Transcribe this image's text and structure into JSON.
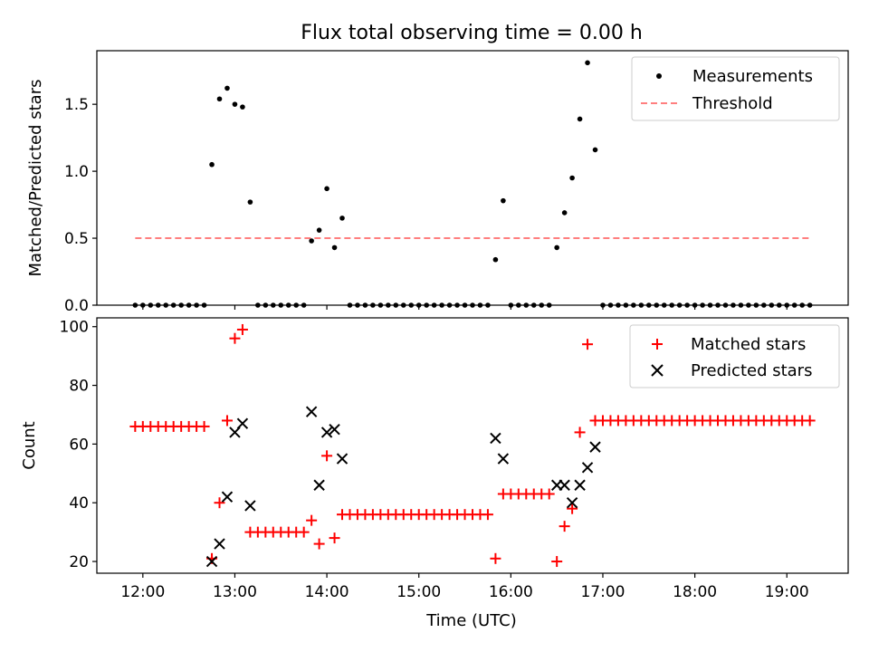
{
  "chart_data": [
    {
      "type": "scatter",
      "title": "Flux total observing time = 0.00 h",
      "ylabel": "Matched/Predicted stars",
      "xlim": [
        "11:30",
        "19:40"
      ],
      "ylim": [
        0,
        1.9
      ],
      "yticks": [
        "0.0",
        "0.5",
        "1.0",
        "1.5"
      ],
      "grid": false,
      "legend": "top-right",
      "series": [
        {
          "name": "Measurements",
          "marker": "dot",
          "color": "#000000",
          "points": [
            [
              "11:55",
              0
            ],
            [
              "12:00",
              0
            ],
            [
              "12:05",
              0
            ],
            [
              "12:10",
              0
            ],
            [
              "12:15",
              0
            ],
            [
              "12:20",
              0
            ],
            [
              "12:25",
              0
            ],
            [
              "12:30",
              0
            ],
            [
              "12:35",
              0
            ],
            [
              "12:40",
              0
            ],
            [
              "12:45",
              1.05
            ],
            [
              "12:50",
              1.54
            ],
            [
              "12:55",
              1.62
            ],
            [
              "13:00",
              1.5
            ],
            [
              "13:05",
              1.48
            ],
            [
              "13:10",
              0.77
            ],
            [
              "13:15",
              0
            ],
            [
              "13:20",
              0
            ],
            [
              "13:25",
              0
            ],
            [
              "13:30",
              0
            ],
            [
              "13:35",
              0
            ],
            [
              "13:40",
              0
            ],
            [
              "13:45",
              0
            ],
            [
              "13:50",
              0.48
            ],
            [
              "13:55",
              0.56
            ],
            [
              "14:00",
              0.87
            ],
            [
              "14:05",
              0.43
            ],
            [
              "14:10",
              0.65
            ],
            [
              "14:15",
              0
            ],
            [
              "14:20",
              0
            ],
            [
              "14:25",
              0
            ],
            [
              "14:30",
              0
            ],
            [
              "14:35",
              0
            ],
            [
              "14:40",
              0
            ],
            [
              "14:45",
              0
            ],
            [
              "14:50",
              0
            ],
            [
              "14:55",
              0
            ],
            [
              "15:00",
              0
            ],
            [
              "15:05",
              0
            ],
            [
              "15:10",
              0
            ],
            [
              "15:15",
              0
            ],
            [
              "15:20",
              0
            ],
            [
              "15:25",
              0
            ],
            [
              "15:30",
              0
            ],
            [
              "15:35",
              0
            ],
            [
              "15:40",
              0
            ],
            [
              "15:45",
              0
            ],
            [
              "15:50",
              0.34
            ],
            [
              "15:55",
              0.78
            ],
            [
              "16:00",
              0
            ],
            [
              "16:05",
              0
            ],
            [
              "16:10",
              0
            ],
            [
              "16:15",
              0
            ],
            [
              "16:20",
              0
            ],
            [
              "16:25",
              0
            ],
            [
              "16:30",
              0.43
            ],
            [
              "16:35",
              0.69
            ],
            [
              "16:40",
              0.95
            ],
            [
              "16:45",
              1.39
            ],
            [
              "16:50",
              1.81
            ],
            [
              "16:55",
              1.16
            ],
            [
              "17:00",
              0
            ],
            [
              "17:05",
              0
            ],
            [
              "17:10",
              0
            ],
            [
              "17:15",
              0
            ],
            [
              "17:20",
              0
            ],
            [
              "17:25",
              0
            ],
            [
              "17:30",
              0
            ],
            [
              "17:35",
              0
            ],
            [
              "17:40",
              0
            ],
            [
              "17:45",
              0
            ],
            [
              "17:50",
              0
            ],
            [
              "17:55",
              0
            ],
            [
              "18:00",
              0
            ],
            [
              "18:05",
              0
            ],
            [
              "18:10",
              0
            ],
            [
              "18:15",
              0
            ],
            [
              "18:20",
              0
            ],
            [
              "18:25",
              0
            ],
            [
              "18:30",
              0
            ],
            [
              "18:35",
              0
            ],
            [
              "18:40",
              0
            ],
            [
              "18:45",
              0
            ],
            [
              "18:50",
              0
            ],
            [
              "18:55",
              0
            ],
            [
              "19:00",
              0
            ],
            [
              "19:05",
              0
            ],
            [
              "19:10",
              0
            ],
            [
              "19:15",
              0
            ]
          ]
        },
        {
          "name": "Threshold",
          "marker": "dashed-line",
          "color": "#ff7f7f",
          "points": [
            [
              "11:55",
              0.5
            ],
            [
              "19:15",
              0.5
            ]
          ]
        }
      ]
    },
    {
      "type": "scatter",
      "xlabel": "Time (UTC)",
      "ylabel": "Count",
      "xlim": [
        "11:30",
        "19:40"
      ],
      "xticks": [
        "12:00",
        "13:00",
        "14:00",
        "15:00",
        "16:00",
        "17:00",
        "18:00",
        "19:00"
      ],
      "ylim": [
        16,
        103
      ],
      "yticks": [
        "20",
        "40",
        "60",
        "80",
        "100"
      ],
      "grid": false,
      "legend": "top-right",
      "series": [
        {
          "name": "Matched stars",
          "marker": "plus",
          "color": "#ff0000",
          "points": [
            [
              "11:55",
              66
            ],
            [
              "12:00",
              66
            ],
            [
              "12:05",
              66
            ],
            [
              "12:10",
              66
            ],
            [
              "12:15",
              66
            ],
            [
              "12:20",
              66
            ],
            [
              "12:25",
              66
            ],
            [
              "12:30",
              66
            ],
            [
              "12:35",
              66
            ],
            [
              "12:40",
              66
            ],
            [
              "12:45",
              21
            ],
            [
              "12:50",
              40
            ],
            [
              "12:55",
              68
            ],
            [
              "13:00",
              96
            ],
            [
              "13:05",
              99
            ],
            [
              "13:10",
              30
            ],
            [
              "13:15",
              30
            ],
            [
              "13:20",
              30
            ],
            [
              "13:25",
              30
            ],
            [
              "13:30",
              30
            ],
            [
              "13:35",
              30
            ],
            [
              "13:40",
              30
            ],
            [
              "13:45",
              30
            ],
            [
              "13:50",
              34
            ],
            [
              "13:55",
              26
            ],
            [
              "14:00",
              56
            ],
            [
              "14:05",
              28
            ],
            [
              "14:10",
              36
            ],
            [
              "14:15",
              36
            ],
            [
              "14:20",
              36
            ],
            [
              "14:25",
              36
            ],
            [
              "14:30",
              36
            ],
            [
              "14:35",
              36
            ],
            [
              "14:40",
              36
            ],
            [
              "14:45",
              36
            ],
            [
              "14:50",
              36
            ],
            [
              "14:55",
              36
            ],
            [
              "15:00",
              36
            ],
            [
              "15:05",
              36
            ],
            [
              "15:10",
              36
            ],
            [
              "15:15",
              36
            ],
            [
              "15:20",
              36
            ],
            [
              "15:25",
              36
            ],
            [
              "15:30",
              36
            ],
            [
              "15:35",
              36
            ],
            [
              "15:40",
              36
            ],
            [
              "15:45",
              36
            ],
            [
              "15:50",
              21
            ],
            [
              "15:55",
              43
            ],
            [
              "16:00",
              43
            ],
            [
              "16:05",
              43
            ],
            [
              "16:10",
              43
            ],
            [
              "16:15",
              43
            ],
            [
              "16:20",
              43
            ],
            [
              "16:25",
              43
            ],
            [
              "16:30",
              20
            ],
            [
              "16:35",
              32
            ],
            [
              "16:40",
              38
            ],
            [
              "16:45",
              64
            ],
            [
              "16:50",
              94
            ],
            [
              "16:55",
              68
            ],
            [
              "17:00",
              68
            ],
            [
              "17:05",
              68
            ],
            [
              "17:10",
              68
            ],
            [
              "17:15",
              68
            ],
            [
              "17:20",
              68
            ],
            [
              "17:25",
              68
            ],
            [
              "17:30",
              68
            ],
            [
              "17:35",
              68
            ],
            [
              "17:40",
              68
            ],
            [
              "17:45",
              68
            ],
            [
              "17:50",
              68
            ],
            [
              "17:55",
              68
            ],
            [
              "18:00",
              68
            ],
            [
              "18:05",
              68
            ],
            [
              "18:10",
              68
            ],
            [
              "18:15",
              68
            ],
            [
              "18:20",
              68
            ],
            [
              "18:25",
              68
            ],
            [
              "18:30",
              68
            ],
            [
              "18:35",
              68
            ],
            [
              "18:40",
              68
            ],
            [
              "18:45",
              68
            ],
            [
              "18:50",
              68
            ],
            [
              "18:55",
              68
            ],
            [
              "19:00",
              68
            ],
            [
              "19:05",
              68
            ],
            [
              "19:10",
              68
            ],
            [
              "19:15",
              68
            ]
          ]
        },
        {
          "name": "Predicted stars",
          "marker": "x",
          "color": "#000000",
          "points": [
            [
              "12:45",
              20
            ],
            [
              "12:50",
              26
            ],
            [
              "12:55",
              42
            ],
            [
              "13:00",
              64
            ],
            [
              "13:05",
              67
            ],
            [
              "13:10",
              39
            ],
            [
              "13:50",
              71
            ],
            [
              "13:55",
              46
            ],
            [
              "14:00",
              64
            ],
            [
              "14:05",
              65
            ],
            [
              "14:10",
              55
            ],
            [
              "15:50",
              62
            ],
            [
              "15:55",
              55
            ],
            [
              "16:30",
              46
            ],
            [
              "16:35",
              46
            ],
            [
              "16:40",
              40
            ],
            [
              "16:45",
              46
            ],
            [
              "16:50",
              52
            ],
            [
              "16:55",
              59
            ]
          ]
        }
      ]
    }
  ]
}
